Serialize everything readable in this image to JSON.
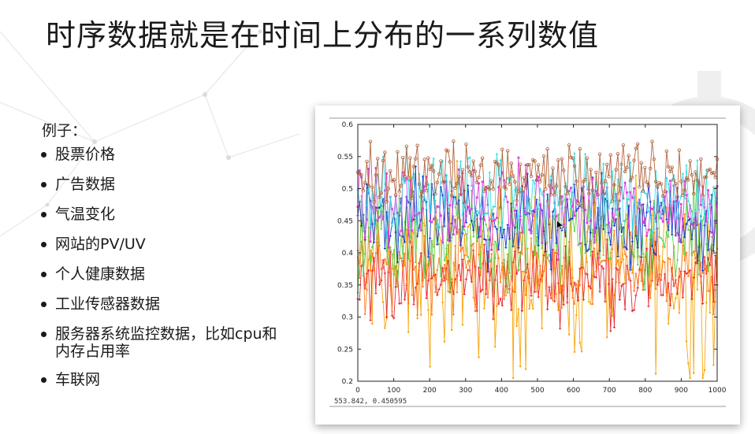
{
  "slide": {
    "title": "时序数据就是在时间上分布的一系列数值",
    "subtitle": "例子：",
    "bullets": [
      "股票价格",
      "广告数据",
      "气温变化",
      "网站的PV/UV",
      "个人健康数据",
      "工业传感器数据",
      "服务器系统监控数据，比如cpu和内存占用率",
      "车联网"
    ]
  },
  "chart_data": {
    "type": "line",
    "title": "",
    "xlabel": "",
    "ylabel": "",
    "xlim": [
      0,
      1000
    ],
    "ylim": [
      0.2,
      0.6
    ],
    "x_ticks": [
      "0",
      "100",
      "200",
      "300",
      "400",
      "500",
      "600",
      "700",
      "800",
      "900",
      "1000"
    ],
    "y_ticks": [
      "0.2",
      "0.25",
      "0.3",
      "0.35",
      "0.4",
      "0.45",
      "0.5",
      "0.55",
      "0.6"
    ],
    "series": [
      {
        "name": "orange",
        "color": "#f5a100",
        "marker": "dot",
        "mean": 0.38,
        "spread": 0.07
      },
      {
        "name": "red",
        "color": "#e8202a",
        "marker": "plus",
        "mean": 0.36,
        "spread": 0.03
      },
      {
        "name": "dark-orange",
        "color": "#ff7a1a",
        "marker": "dot",
        "mean": 0.38,
        "spread": 0.035
      },
      {
        "name": "green",
        "color": "#55d24a",
        "marker": "dot",
        "mean": 0.42,
        "spread": 0.04
      },
      {
        "name": "blue",
        "color": "#1133cc",
        "marker": "star",
        "mean": 0.45,
        "spread": 0.035
      },
      {
        "name": "magenta",
        "color": "#e040e0",
        "marker": "square",
        "mean": 0.47,
        "spread": 0.03
      },
      {
        "name": "cyan",
        "color": "#33dde0",
        "marker": "triangle",
        "mean": 0.49,
        "spread": 0.03
      },
      {
        "name": "brown",
        "color": "#b0603a",
        "marker": "circle",
        "mean": 0.52,
        "spread": 0.025
      }
    ],
    "n_points": 200,
    "cursor_readout": "553.842,  0.450595"
  }
}
